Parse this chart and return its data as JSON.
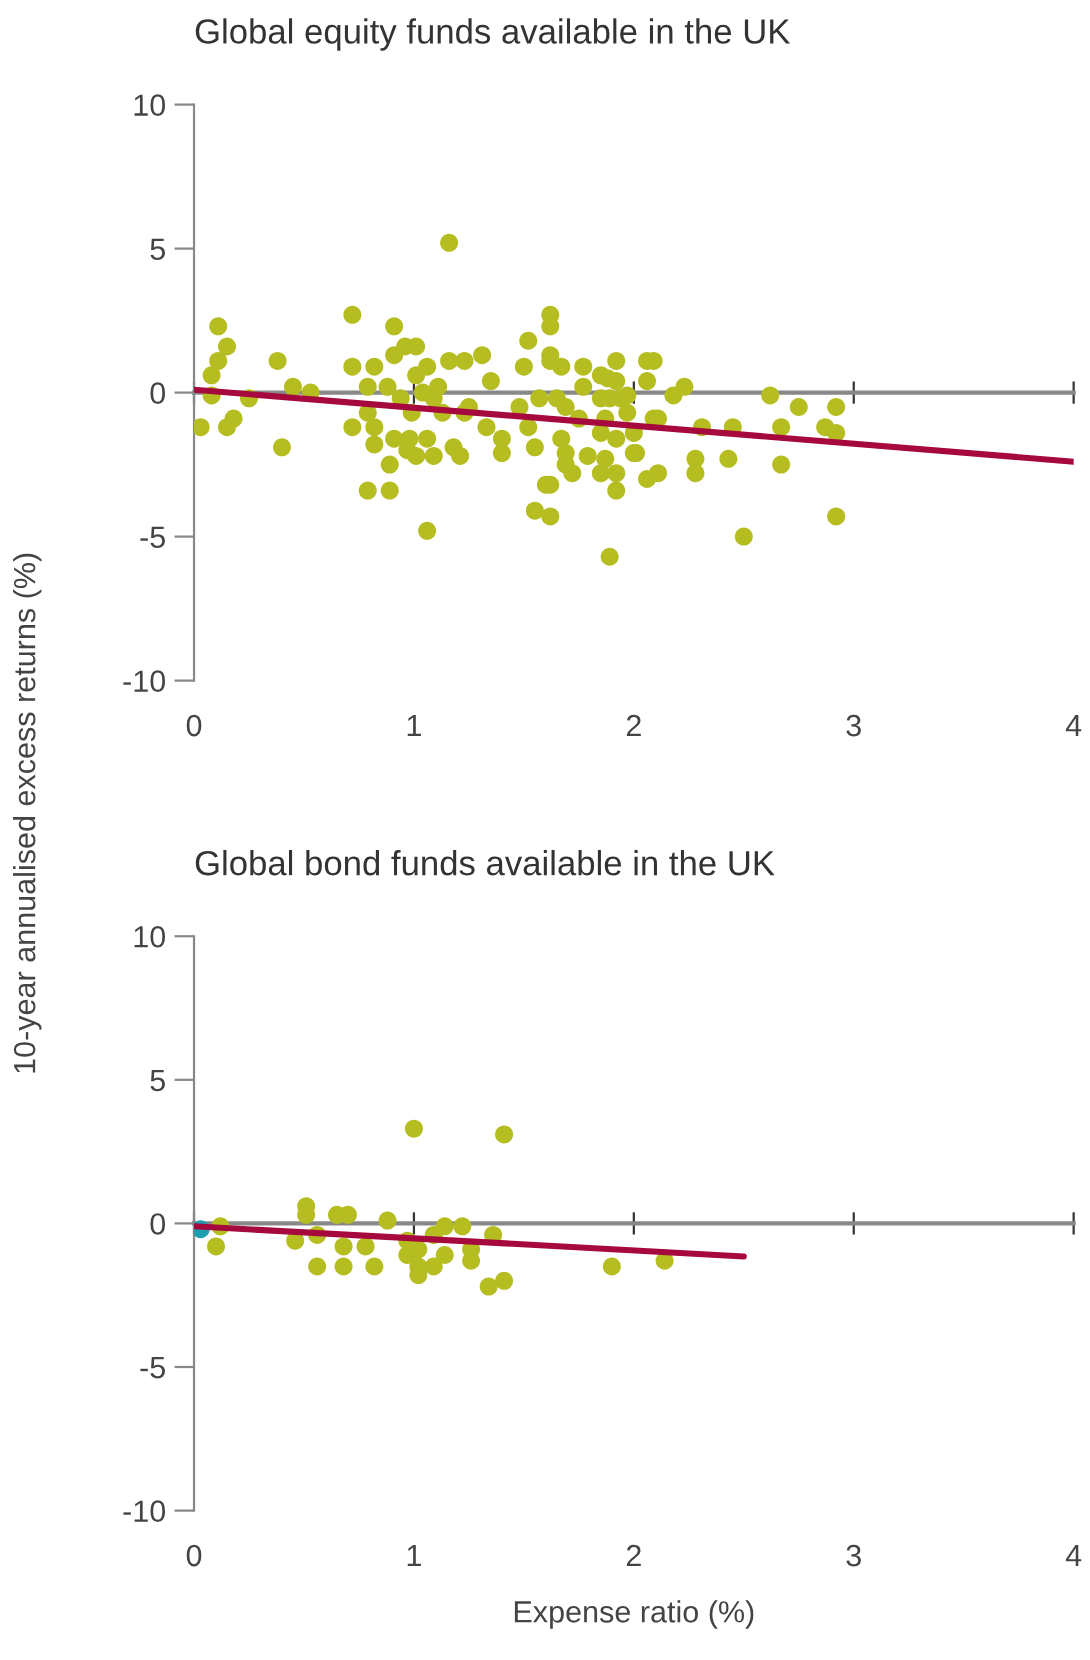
{
  "chart_data": [
    {
      "type": "scatter",
      "title": "Global equity funds available in the UK",
      "ylabel": "10-year annualised excess returns (%)",
      "xlim": [
        0,
        4
      ],
      "ylim": [
        -10,
        10
      ],
      "xticks": [
        0,
        1,
        2,
        3,
        4
      ],
      "yticks": [
        -10,
        -5,
        0,
        5,
        10
      ],
      "series": [
        {
          "marker": "circle",
          "color": "#b5bd21",
          "x": [
            0.03,
            0.08,
            0.11,
            0.11,
            0.15,
            0.08,
            0.18,
            0.15,
            0.25,
            0.38,
            0.4,
            0.45,
            0.53,
            0.72,
            0.72,
            0.72,
            0.79,
            0.79,
            0.82,
            0.79,
            0.82,
            0.82,
            0.88,
            0.89,
            0.89,
            0.91,
            0.91,
            0.94,
            0.91,
            0.98,
            0.97,
            0.96,
            1.01,
            1.01,
            1.06,
            0.99,
            1.01,
            1.06,
            1.09,
            1.04,
            1.09,
            1.11,
            1.16,
            1.16,
            1.13,
            1.18,
            1.21,
            1.06,
            1.23,
            1.23,
            1.25,
            1.31,
            1.33,
            1.35,
            1.4,
            1.4,
            1.48,
            1.5,
            1.52,
            1.52,
            1.55,
            1.57,
            1.55,
            1.62,
            1.62,
            1.62,
            1.62,
            1.67,
            1.6,
            1.62,
            1.62,
            1.65,
            1.69,
            1.67,
            1.69,
            1.69,
            1.72,
            1.75,
            1.77,
            1.77,
            1.79,
            1.85,
            1.88,
            1.85,
            1.89,
            1.94,
            1.87,
            1.85,
            1.85,
            1.87,
            1.92,
            1.92,
            1.92,
            1.92,
            1.92,
            1.89,
            1.97,
            1.97,
            2.0,
            2.0,
            2.06,
            2.09,
            2.06,
            2.09,
            2.11,
            2.01,
            2.06,
            2.11,
            2.18,
            2.23,
            2.31,
            2.28,
            2.28,
            2.43,
            2.45,
            2.5,
            2.62,
            2.67,
            2.75,
            2.67,
            2.87,
            2.92,
            2.92,
            2.92
          ],
          "values": [
            -1.2,
            0.6,
            2.3,
            1.1,
            1.6,
            -0.1,
            -0.9,
            -1.2,
            -0.2,
            1.1,
            -1.9,
            0.2,
            0.0,
            2.7,
            0.9,
            -1.2,
            -0.7,
            -3.4,
            0.9,
            0.2,
            -1.2,
            -1.8,
            0.2,
            -3.4,
            -2.5,
            2.3,
            1.3,
            -0.2,
            -1.6,
            -1.6,
            -2.0,
            1.6,
            1.6,
            0.6,
            0.9,
            -0.7,
            -2.2,
            -1.6,
            -2.2,
            0.0,
            -0.2,
            0.2,
            5.2,
            1.1,
            -0.7,
            -1.9,
            -2.2,
            -4.8,
            1.1,
            -0.7,
            -0.5,
            1.3,
            -1.2,
            0.4,
            -1.6,
            -2.1,
            -0.5,
            0.9,
            1.8,
            -1.2,
            -1.9,
            -0.2,
            -4.1,
            2.7,
            2.3,
            1.3,
            1.1,
            0.9,
            -3.2,
            -3.2,
            -4.3,
            -0.2,
            -0.5,
            -1.6,
            -2.1,
            -2.5,
            -2.8,
            -0.9,
            0.9,
            0.2,
            -2.2,
            0.6,
            0.5,
            -0.2,
            -0.2,
            -0.2,
            -0.9,
            -1.4,
            -2.8,
            -2.3,
            1.1,
            0.4,
            -1.6,
            -2.8,
            -3.4,
            -5.7,
            -0.1,
            -0.7,
            -1.4,
            -2.1,
            1.1,
            1.1,
            0.4,
            -0.9,
            -0.9,
            -2.1,
            -3.0,
            -2.8,
            -0.1,
            0.2,
            -1.2,
            -2.3,
            -2.8,
            -2.3,
            -1.2,
            -5.0,
            -0.1,
            -1.2,
            -0.5,
            -2.5,
            -1.2,
            -1.4,
            -0.5,
            -4.3
          ]
        },
        {
          "type": "line",
          "color": "#a6093d",
          "x": [
            0,
            4
          ],
          "values": [
            0.1,
            -2.4
          ]
        }
      ]
    },
    {
      "type": "scatter",
      "title": "Global bond funds available in the UK",
      "xlabel": "Expense ratio (%)",
      "xlim": [
        0,
        4
      ],
      "ylim": [
        -10,
        10
      ],
      "xticks": [
        0,
        1,
        2,
        3,
        4
      ],
      "yticks": [
        -10,
        -5,
        0,
        5,
        10
      ],
      "series": [
        {
          "marker": "circle",
          "color": "#b5bd21",
          "x": [
            1.0,
            1.41,
            0.12,
            0.1,
            0.46,
            0.51,
            0.51,
            0.56,
            0.56,
            0.65,
            0.7,
            0.68,
            0.68,
            0.78,
            0.82,
            0.88,
            0.97,
            0.97,
            1.02,
            1.02,
            1.02,
            1.09,
            1.09,
            1.14,
            1.14,
            1.22,
            1.26,
            1.26,
            1.36,
            1.34,
            1.41,
            1.9,
            2.14
          ],
          "values": [
            3.3,
            3.1,
            -0.1,
            -0.8,
            -0.6,
            0.6,
            0.3,
            -0.4,
            -1.5,
            0.3,
            0.3,
            -0.8,
            -1.5,
            -0.8,
            -1.5,
            0.1,
            -0.6,
            -1.1,
            -0.9,
            -1.5,
            -1.8,
            -0.4,
            -1.5,
            -0.1,
            -1.1,
            -0.1,
            -0.9,
            -1.3,
            -0.4,
            -2.2,
            -2.0,
            -1.5,
            -1.3
          ]
        },
        {
          "marker": "circle",
          "color": "#1c9fb0",
          "x": [
            0.03
          ],
          "values": [
            -0.2
          ]
        },
        {
          "type": "line",
          "color": "#a6093d",
          "x": [
            0,
            2.5
          ],
          "values": [
            -0.1,
            -1.15
          ]
        }
      ]
    }
  ]
}
